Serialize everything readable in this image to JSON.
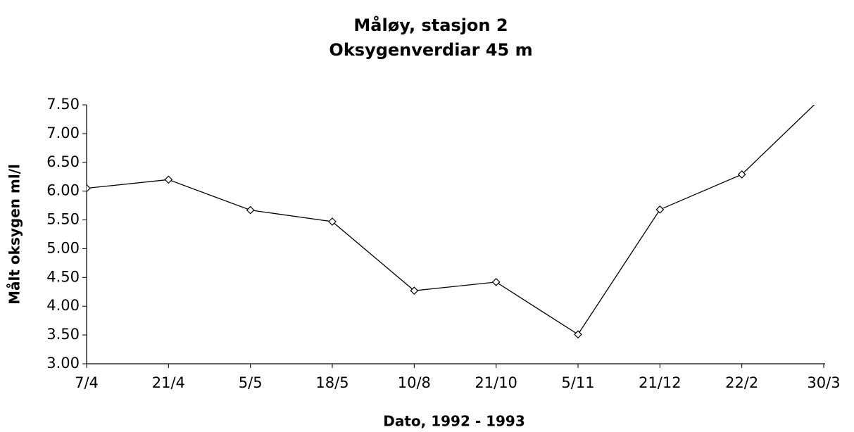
{
  "chart_data": {
    "type": "line",
    "title": "Måløy, stasjon 2",
    "subtitle": "Oksygenverdiar  45 m",
    "y_label": "Målt oksygen ml/l",
    "x_label": "Dato, 1992 - 1993",
    "categories": [
      "7/4",
      "21/4",
      "5/5",
      "18/5",
      "10/8",
      "21/10",
      "5/11",
      "21/12",
      "22/2",
      "30/3"
    ],
    "values": [
      6.05,
      6.2,
      5.67,
      5.47,
      4.27,
      4.42,
      3.51,
      5.68,
      6.29,
      7.66
    ],
    "color": "#000000",
    "marker": "diamond",
    "ylim": [
      3.0,
      7.5
    ],
    "yticks": [
      {
        "value": 3.0,
        "label": "3.00"
      },
      {
        "value": 3.5,
        "label": "3.50"
      },
      {
        "value": 4.0,
        "label": "4.00"
      },
      {
        "value": 4.5,
        "label": "4.50"
      },
      {
        "value": 5.0,
        "label": "5.00"
      },
      {
        "value": 5.5,
        "label": "5.50"
      },
      {
        "value": 6.0,
        "label": "6.00"
      },
      {
        "value": 6.5,
        "label": "6.50"
      },
      {
        "value": 7.0,
        "label": "7.00"
      },
      {
        "value": 7.5,
        "label": "7.50"
      }
    ],
    "grid": false
  }
}
